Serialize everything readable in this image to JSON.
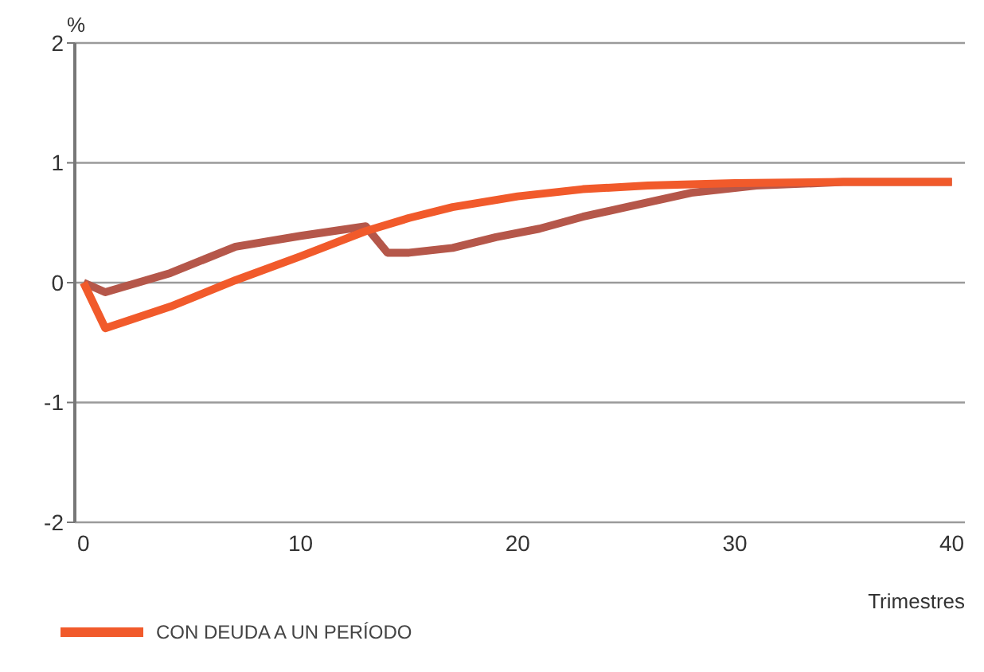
{
  "chart_data": {
    "type": "line",
    "ylabel": "%",
    "xlabel": "Trimestres",
    "xlim": [
      -0.4,
      40.6
    ],
    "xticks": [
      0,
      10,
      20,
      30,
      40
    ],
    "ylim": [
      -2,
      2
    ],
    "yticks": [
      -2,
      -1,
      0,
      1,
      2
    ],
    "grid": "y",
    "legend": "bottom left",
    "marker": "none",
    "line_style": "solid",
    "series": [
      {
        "name": "CON DEUDA A UN PERÍODO",
        "color": "#f15a2b",
        "x": [
          0,
          1,
          4,
          7,
          10,
          13,
          15,
          17,
          20,
          23,
          26,
          30,
          35,
          40
        ],
        "values": [
          0,
          -0.38,
          -0.2,
          0.02,
          0.22,
          0.43,
          0.54,
          0.63,
          0.72,
          0.78,
          0.81,
          0.83,
          0.84,
          0.84
        ]
      },
      {
        "color": "#b5574a",
        "x": [
          0,
          1,
          4,
          7,
          10,
          13,
          14,
          15,
          17,
          19,
          21,
          23,
          25,
          28,
          31,
          35,
          40
        ],
        "values": [
          0,
          -0.08,
          0.08,
          0.3,
          0.39,
          0.47,
          0.25,
          0.25,
          0.29,
          0.38,
          0.45,
          0.55,
          0.63,
          0.75,
          0.81,
          0.84,
          0.84
        ]
      }
    ]
  }
}
